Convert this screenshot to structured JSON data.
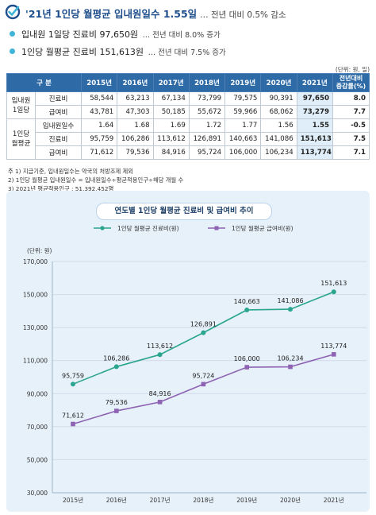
{
  "header": {
    "title": "'21년 1인당 월평균 입내원일수 1.55일",
    "subtitle": "… 전년 대비 0.5% 감소"
  },
  "bullets": [
    {
      "main": "입내원 1일당 진료비 97,650원",
      "sub": "… 전년 대비 8.0% 증가"
    },
    {
      "main": "1인당 월평균 진료비 151,613원",
      "sub": "… 전년 대비 7.5% 증가"
    }
  ],
  "table": {
    "unit": "(단위: 원, 일)",
    "header_col": "구  분",
    "years": [
      "2015년",
      "2016년",
      "2017년",
      "2018년",
      "2019년",
      "2020년",
      "2021년"
    ],
    "change_header": [
      "전년대비",
      "증감률(%)"
    ],
    "groups": [
      {
        "label": [
          "입내원",
          "1일당"
        ],
        "rows": [
          {
            "label": "진료비",
            "values": [
              "58,544",
              "63,213",
              "67,134",
              "73,799",
              "79,575",
              "90,391",
              "97,650"
            ],
            "change": "8.0"
          },
          {
            "label": "급여비",
            "values": [
              "43,781",
              "47,303",
              "50,185",
              "55,672",
              "59,966",
              "68,062",
              "73,279"
            ],
            "change": "7.7"
          }
        ]
      },
      {
        "label": [
          "1인당",
          "월평균"
        ],
        "rows": [
          {
            "label": "입내원일수",
            "values": [
              "1.64",
              "1.68",
              "1.69",
              "1.72",
              "1.77",
              "1.56",
              "1.55"
            ],
            "change": "-0.5"
          },
          {
            "label": "진료비",
            "values": [
              "95,759",
              "106,286",
              "113,612",
              "126,891",
              "140,663",
              "141,086",
              "151,613"
            ],
            "change": "7.5"
          },
          {
            "label": "급여비",
            "values": [
              "71,612",
              "79,536",
              "84,916",
              "95,724",
              "106,000",
              "106,234",
              "113,774"
            ],
            "change": "7.1"
          }
        ]
      }
    ]
  },
  "notes": [
    "주 1) 지급기준, 입내원일수는 약국의 처방조제 제외",
    "   2) 1인당 월평균 입내원일수 = 입내원일수÷평균적용인구÷해당 개월 수",
    "   3) 2021년 평균적용인구 : 51,392,452명"
  ],
  "colors": {
    "header_blue": "#2d6aa6",
    "series1": "#2aa58e",
    "series2": "#8e63b3",
    "check": "#1f4e8c"
  },
  "chart_data": {
    "type": "line",
    "title": "연도별 1인당 월평균 진료비 및 급여비 추이",
    "ylabel": "(단위: 원)",
    "x": [
      "2015년",
      "2016년",
      "2017년",
      "2018년",
      "2019년",
      "2020년",
      "2021년"
    ],
    "ylim": [
      30000,
      170000
    ],
    "yticks": [
      "30,000",
      "50,000",
      "70,000",
      "90,000",
      "110,000",
      "130,000",
      "150,000",
      "170,000"
    ],
    "ytick_values": [
      30000,
      50000,
      70000,
      90000,
      110000,
      130000,
      150000,
      170000
    ],
    "series": [
      {
        "name": "1인당 월평균 진료비(원)",
        "values": [
          95759,
          106286,
          113612,
          126891,
          140663,
          141086,
          151613
        ],
        "labels": [
          "95,759",
          "106,286",
          "113,612",
          "126,891",
          "140,663",
          "141,086",
          "151,613"
        ]
      },
      {
        "name": "1인당 월평균 급여비(원)",
        "values": [
          71612,
          79536,
          84916,
          95724,
          106000,
          106234,
          113774
        ],
        "labels": [
          "71,612",
          "79,536",
          "84,916",
          "95,724",
          "106,000",
          "106,234",
          "113,774"
        ]
      }
    ]
  }
}
